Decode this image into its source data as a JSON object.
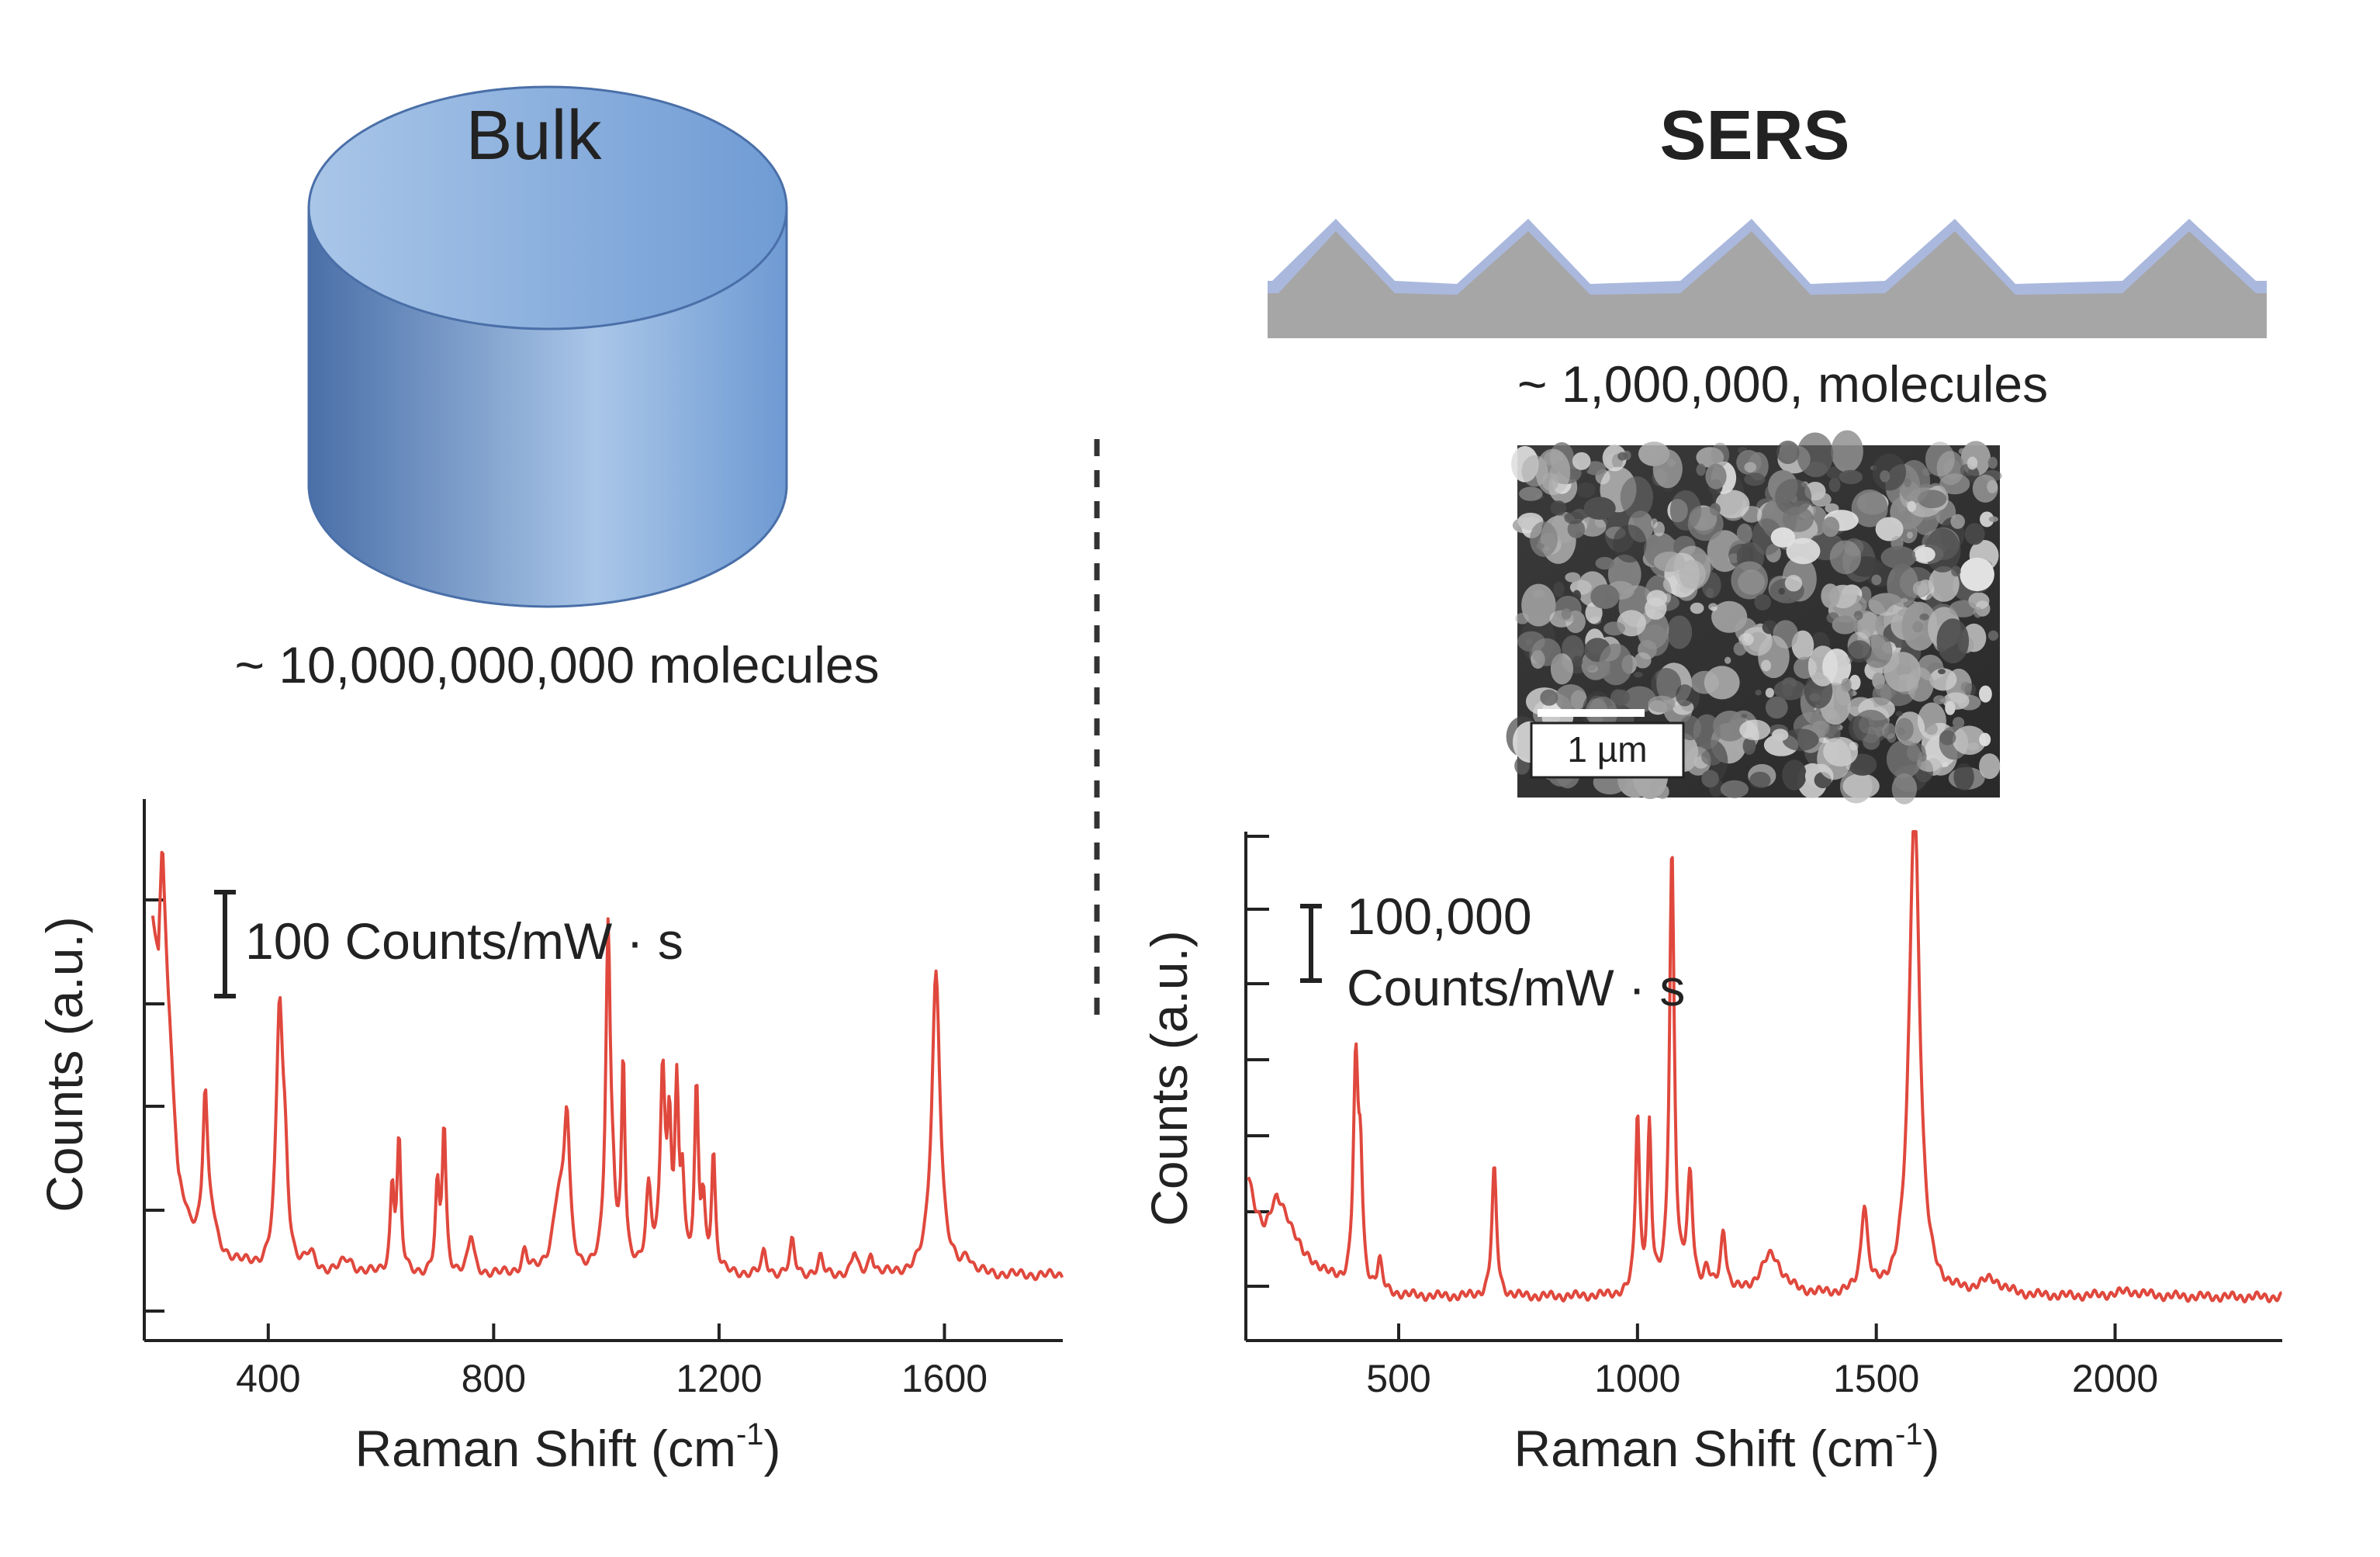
{
  "bulk": {
    "title": "Bulk",
    "molecules": "~ 10,000,000,000 molecules",
    "scale_label": "100 Counts/mW · s"
  },
  "sers": {
    "title": "SERS",
    "molecules": "~ 1,000,000, molecules",
    "scale_label_line1": "100,000",
    "scale_label_line2": "Counts/mW · s",
    "sem_scalebar_label": "1 µm"
  },
  "colors": {
    "spectrum": "#e0483d",
    "cylinder_dark": "#4a6fa8",
    "cylinder_light": "#a9c6e8",
    "substrate": "#a6a6a6",
    "coating": "#aab8dd",
    "axis": "#222222"
  },
  "chart_data": [
    {
      "type": "line",
      "name": "bulk",
      "xlabel": "Raman Shift (cm-1)",
      "xlabel_main": "Raman Shift (cm",
      "xlabel_sup": "-1",
      "xlabel_end": ")",
      "ylabel": "Counts (a.u.)",
      "xlim": [
        180,
        1810
      ],
      "ylim": [
        0,
        10
      ],
      "xticks": [
        400,
        800,
        1200,
        1600
      ],
      "xtick_labels": [
        "400",
        "800",
        "1200",
        "1600"
      ],
      "baseline": 1.2,
      "start": [
        [
          195,
          7.8
        ],
        [
          205,
          7.2
        ],
        [
          212,
          9.3
        ],
        [
          222,
          6.5
        ],
        [
          240,
          3.0
        ],
        [
          260,
          2.2
        ]
      ],
      "peaks": [
        {
          "x": 288,
          "h": 2.7,
          "w": 5
        },
        {
          "x": 300,
          "h": 0.5,
          "w": 8
        },
        {
          "x": 420,
          "h": 4.7,
          "w": 7
        },
        {
          "x": 430,
          "h": 1.5,
          "w": 6
        },
        {
          "x": 475,
          "h": 0.3,
          "w": 10
        },
        {
          "x": 540,
          "h": 0.25,
          "w": 15
        },
        {
          "x": 620,
          "h": 1.6,
          "w": 4
        },
        {
          "x": 632,
          "h": 2.4,
          "w": 4
        },
        {
          "x": 700,
          "h": 1.5,
          "w": 4
        },
        {
          "x": 712,
          "h": 2.7,
          "w": 4
        },
        {
          "x": 760,
          "h": 0.7,
          "w": 6
        },
        {
          "x": 855,
          "h": 0.4,
          "w": 6
        },
        {
          "x": 915,
          "h": 1.3,
          "w": 12
        },
        {
          "x": 930,
          "h": 2.6,
          "w": 6
        },
        {
          "x": 1003,
          "h": 6.2,
          "w": 5
        },
        {
          "x": 1012,
          "h": 1.0,
          "w": 5
        },
        {
          "x": 1030,
          "h": 3.9,
          "w": 3.5
        },
        {
          "x": 1075,
          "h": 1.5,
          "w": 6
        },
        {
          "x": 1100,
          "h": 3.6,
          "w": 5
        },
        {
          "x": 1112,
          "h": 2.4,
          "w": 4
        },
        {
          "x": 1125,
          "h": 3.2,
          "w": 4
        },
        {
          "x": 1135,
          "h": 1.6,
          "w": 4
        },
        {
          "x": 1160,
          "h": 3.3,
          "w": 4
        },
        {
          "x": 1172,
          "h": 1.2,
          "w": 4
        },
        {
          "x": 1190,
          "h": 2.2,
          "w": 4
        },
        {
          "x": 1280,
          "h": 0.4,
          "w": 5
        },
        {
          "x": 1330,
          "h": 0.6,
          "w": 5
        },
        {
          "x": 1380,
          "h": 0.3,
          "w": 5
        },
        {
          "x": 1440,
          "h": 0.4,
          "w": 5
        },
        {
          "x": 1470,
          "h": 0.4,
          "w": 5
        },
        {
          "x": 1585,
          "h": 5.6,
          "w": 9
        },
        {
          "x": 1640,
          "h": 0.3,
          "w": 8
        }
      ]
    },
    {
      "type": "line",
      "name": "sers",
      "xlabel": "Raman Shift (cm-1)",
      "xlabel_main": "Raman Shift (cm",
      "xlabel_sup": "-1",
      "xlabel_end": ")",
      "ylabel": "Counts (a.u.)",
      "xlim": [
        180,
        2350
      ],
      "ylim": [
        0,
        10
      ],
      "xticks": [
        500,
        1000,
        1500,
        2000
      ],
      "xtick_labels": [
        "500",
        "1000",
        "1500",
        "2000"
      ],
      "baseline": 0.85,
      "start": [
        [
          185,
          3.2
        ],
        [
          200,
          2.6
        ],
        [
          220,
          2.3
        ],
        [
          245,
          2.8
        ],
        [
          265,
          2.5
        ],
        [
          300,
          1.7
        ],
        [
          340,
          1.4
        ]
      ],
      "peaks": [
        {
          "x": 410,
          "h": 4.3,
          "w": 6
        },
        {
          "x": 420,
          "h": 2.2,
          "w": 5
        },
        {
          "x": 460,
          "h": 0.6,
          "w": 6
        },
        {
          "x": 700,
          "h": 2.5,
          "w": 6
        },
        {
          "x": 1000,
          "h": 3.5,
          "w": 5
        },
        {
          "x": 1025,
          "h": 3.2,
          "w": 5
        },
        {
          "x": 1072,
          "h": 8.7,
          "w": 6
        },
        {
          "x": 1110,
          "h": 2.2,
          "w": 7
        },
        {
          "x": 1145,
          "h": 0.4,
          "w": 8
        },
        {
          "x": 1180,
          "h": 1.2,
          "w": 7
        },
        {
          "x": 1280,
          "h": 0.8,
          "w": 28
        },
        {
          "x": 1475,
          "h": 1.7,
          "w": 8
        },
        {
          "x": 1580,
          "h": 9.8,
          "w": 13
        },
        {
          "x": 1740,
          "h": 0.3,
          "w": 30
        },
        {
          "x": 2030,
          "h": 0.1,
          "w": 40
        }
      ]
    }
  ]
}
